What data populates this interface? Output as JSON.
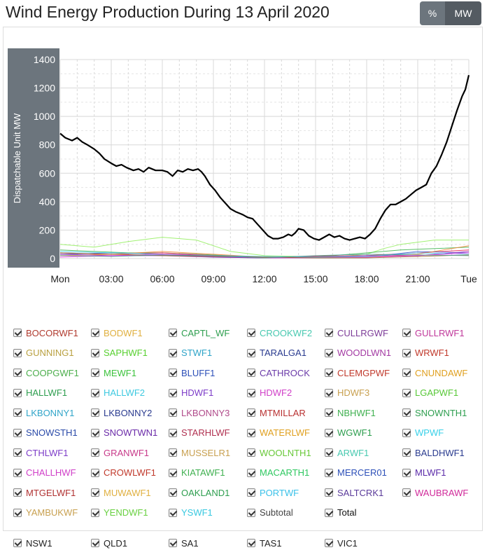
{
  "title": "Wind Energy Production During 13 April 2020",
  "toggle": {
    "percent_label": "%",
    "mw_label": "MW",
    "active": "MW"
  },
  "chart_data": {
    "type": "line",
    "ylabel": "Dispatchable Unit MW",
    "ylim": [
      0,
      1400
    ],
    "yticks": [
      0,
      200,
      400,
      600,
      800,
      1000,
      1200,
      1400
    ],
    "xlim": [
      0,
      24
    ],
    "xticks": [
      {
        "x": 0,
        "label": "Mon"
      },
      {
        "x": 3,
        "label": "03:00"
      },
      {
        "x": 6,
        "label": "06:00"
      },
      {
        "x": 9,
        "label": "09:00"
      },
      {
        "x": 12,
        "label": "12:00"
      },
      {
        "x": 15,
        "label": "15:00"
      },
      {
        "x": 18,
        "label": "18:00"
      },
      {
        "x": 21,
        "label": "21:00"
      },
      {
        "x": 24,
        "label": "Tue"
      }
    ],
    "grid": true,
    "total": {
      "name": "Total",
      "color": "#000000",
      "points": [
        [
          0,
          880
        ],
        [
          0.3,
          850
        ],
        [
          0.7,
          830
        ],
        [
          1.0,
          850
        ],
        [
          1.3,
          820
        ],
        [
          1.6,
          800
        ],
        [
          2.0,
          770
        ],
        [
          2.3,
          740
        ],
        [
          2.6,
          700
        ],
        [
          3.0,
          670
        ],
        [
          3.3,
          650
        ],
        [
          3.6,
          660
        ],
        [
          3.9,
          640
        ],
        [
          4.3,
          620
        ],
        [
          4.6,
          630
        ],
        [
          4.9,
          610
        ],
        [
          5.2,
          640
        ],
        [
          5.6,
          620
        ],
        [
          6.0,
          620
        ],
        [
          6.3,
          610
        ],
        [
          6.6,
          580
        ],
        [
          6.9,
          620
        ],
        [
          7.2,
          610
        ],
        [
          7.5,
          630
        ],
        [
          7.8,
          620
        ],
        [
          8.1,
          630
        ],
        [
          8.3,
          610
        ],
        [
          8.5,
          580
        ],
        [
          8.8,
          520
        ],
        [
          9.1,
          480
        ],
        [
          9.4,
          430
        ],
        [
          9.7,
          390
        ],
        [
          10.0,
          350
        ],
        [
          10.3,
          330
        ],
        [
          10.7,
          310
        ],
        [
          11.0,
          290
        ],
        [
          11.3,
          280
        ],
        [
          11.6,
          240
        ],
        [
          11.9,
          200
        ],
        [
          12.2,
          160
        ],
        [
          12.5,
          140
        ],
        [
          12.8,
          140
        ],
        [
          13.1,
          150
        ],
        [
          13.4,
          170
        ],
        [
          13.6,
          160
        ],
        [
          13.8,
          180
        ],
        [
          14.0,
          210
        ],
        [
          14.3,
          200
        ],
        [
          14.6,
          160
        ],
        [
          14.9,
          140
        ],
        [
          15.2,
          130
        ],
        [
          15.5,
          150
        ],
        [
          15.8,
          170
        ],
        [
          16.1,
          150
        ],
        [
          16.4,
          160
        ],
        [
          16.7,
          140
        ],
        [
          17.0,
          130
        ],
        [
          17.3,
          140
        ],
        [
          17.6,
          150
        ],
        [
          17.9,
          140
        ],
        [
          18.2,
          170
        ],
        [
          18.5,
          210
        ],
        [
          18.8,
          280
        ],
        [
          19.1,
          340
        ],
        [
          19.4,
          380
        ],
        [
          19.7,
          380
        ],
        [
          20.0,
          400
        ],
        [
          20.3,
          420
        ],
        [
          20.6,
          450
        ],
        [
          20.9,
          480
        ],
        [
          21.2,
          500
        ],
        [
          21.5,
          520
        ],
        [
          21.8,
          600
        ],
        [
          22.1,
          650
        ],
        [
          22.4,
          730
        ],
        [
          22.7,
          820
        ],
        [
          23.0,
          930
        ],
        [
          23.3,
          1040
        ],
        [
          23.6,
          1140
        ],
        [
          23.8,
          1190
        ],
        [
          24.0,
          1290
        ]
      ]
    },
    "minor_series": [
      {
        "color": "#90ee5a",
        "points": [
          [
            0,
            100
          ],
          [
            2,
            80
          ],
          [
            4,
            120
          ],
          [
            6,
            150
          ],
          [
            8,
            130
          ],
          [
            9,
            90
          ],
          [
            10,
            50
          ],
          [
            12,
            20
          ],
          [
            14,
            15
          ],
          [
            16,
            10
          ],
          [
            18,
            30
          ],
          [
            19,
            70
          ],
          [
            20,
            100
          ],
          [
            22,
            130
          ],
          [
            24,
            130
          ]
        ]
      },
      {
        "color": "#3cb44b",
        "points": [
          [
            0,
            60
          ],
          [
            2,
            50
          ],
          [
            4,
            40
          ],
          [
            6,
            40
          ],
          [
            8,
            30
          ],
          [
            10,
            20
          ],
          [
            12,
            10
          ],
          [
            14,
            10
          ],
          [
            16,
            20
          ],
          [
            18,
            40
          ],
          [
            20,
            60
          ],
          [
            22,
            70
          ],
          [
            24,
            80
          ]
        ]
      },
      {
        "color": "#e6194b",
        "points": [
          [
            0,
            40
          ],
          [
            3,
            30
          ],
          [
            6,
            40
          ],
          [
            9,
            20
          ],
          [
            12,
            10
          ],
          [
            15,
            15
          ],
          [
            18,
            20
          ],
          [
            21,
            40
          ],
          [
            24,
            60
          ]
        ]
      },
      {
        "color": "#4363d8",
        "points": [
          [
            0,
            30
          ],
          [
            3,
            40
          ],
          [
            6,
            30
          ],
          [
            9,
            10
          ],
          [
            12,
            5
          ],
          [
            15,
            5
          ],
          [
            18,
            10
          ],
          [
            21,
            50
          ],
          [
            24,
            40
          ]
        ]
      },
      {
        "color": "#f58231",
        "points": [
          [
            0,
            20
          ],
          [
            3,
            30
          ],
          [
            6,
            50
          ],
          [
            9,
            30
          ],
          [
            12,
            10
          ],
          [
            15,
            5
          ],
          [
            18,
            10
          ],
          [
            21,
            30
          ],
          [
            24,
            90
          ]
        ]
      },
      {
        "color": "#911eb4",
        "points": [
          [
            0,
            30
          ],
          [
            3,
            20
          ],
          [
            6,
            20
          ],
          [
            9,
            10
          ],
          [
            12,
            5
          ],
          [
            15,
            10
          ],
          [
            18,
            20
          ],
          [
            21,
            20
          ],
          [
            24,
            50
          ]
        ]
      },
      {
        "color": "#42d4f4",
        "points": [
          [
            0,
            50
          ],
          [
            3,
            40
          ],
          [
            6,
            30
          ],
          [
            9,
            20
          ],
          [
            12,
            15
          ],
          [
            15,
            10
          ],
          [
            18,
            15
          ],
          [
            21,
            40
          ],
          [
            24,
            30
          ]
        ]
      },
      {
        "color": "#f032e6",
        "points": [
          [
            0,
            10
          ],
          [
            3,
            20
          ],
          [
            6,
            30
          ],
          [
            9,
            20
          ],
          [
            12,
            5
          ],
          [
            15,
            5
          ],
          [
            18,
            10
          ],
          [
            21,
            20
          ],
          [
            24,
            40
          ]
        ]
      },
      {
        "color": "#9a6324",
        "points": [
          [
            0,
            40
          ],
          [
            3,
            30
          ],
          [
            6,
            20
          ],
          [
            9,
            15
          ],
          [
            12,
            10
          ],
          [
            15,
            5
          ],
          [
            18,
            5
          ],
          [
            21,
            15
          ],
          [
            24,
            25
          ]
        ]
      },
      {
        "color": "#469990",
        "points": [
          [
            0,
            20
          ],
          [
            3,
            15
          ],
          [
            6,
            25
          ],
          [
            9,
            20
          ],
          [
            12,
            5
          ],
          [
            15,
            20
          ],
          [
            18,
            30
          ],
          [
            21,
            25
          ],
          [
            24,
            20
          ]
        ]
      }
    ]
  },
  "legend": {
    "rows": [
      [
        {
          "label": "BOCORWF1",
          "color": "#b03a2e"
        },
        {
          "label": "BODWF1",
          "color": "#e0b040"
        },
        {
          "label": "CAPTL_WF",
          "color": "#2e9e4f"
        },
        {
          "label": "CROOKWF2",
          "color": "#48c9b0"
        },
        {
          "label": "CULLRGWF",
          "color": "#7d3c98"
        },
        {
          "label": "GULLRWF1",
          "color": "#c0399b"
        }
      ],
      [
        {
          "label": "GUNNING1",
          "color": "#b9a040"
        },
        {
          "label": "SAPHWF1",
          "color": "#58d030"
        },
        {
          "label": "STWF1",
          "color": "#2fa4c8"
        },
        {
          "label": "TARALGA1",
          "color": "#2a3b8f"
        },
        {
          "label": "WOODLWN1",
          "color": "#a33aa3"
        },
        {
          "label": "WRWF1",
          "color": "#c0392b"
        }
      ],
      [
        {
          "label": "COOPGWF1",
          "color": "#4cae4c"
        },
        {
          "label": "MEWF1",
          "color": "#3cc23c"
        },
        {
          "label": "BLUFF1",
          "color": "#2c4fb8"
        },
        {
          "label": "CATHROCK",
          "color": "#6a3aa8"
        },
        {
          "label": "CLEMGPWF",
          "color": "#c0392b"
        },
        {
          "label": "CNUNDAWF",
          "color": "#e0a020"
        }
      ],
      [
        {
          "label": "HALLWF1",
          "color": "#2e9e4f"
        },
        {
          "label": "HALLWF2",
          "color": "#3ec9e0"
        },
        {
          "label": "HDWF1",
          "color": "#7d3cc8"
        },
        {
          "label": "HDWF2",
          "color": "#d040c8"
        },
        {
          "label": "HDWF3",
          "color": "#c8a050"
        },
        {
          "label": "LGAPWF1",
          "color": "#58c838"
        }
      ],
      [
        {
          "label": "LKBONNY1",
          "color": "#2fa4c8"
        },
        {
          "label": "LKBONNY2",
          "color": "#2a3b8f"
        },
        {
          "label": "LKBONNY3",
          "color": "#b04a8a"
        },
        {
          "label": "MTMILLAR",
          "color": "#b83030"
        },
        {
          "label": "NBHWF1",
          "color": "#40b050"
        },
        {
          "label": "SNOWNTH1",
          "color": "#2e9e4f"
        }
      ],
      [
        {
          "label": "SNOWSTH1",
          "color": "#2a4aa8"
        },
        {
          "label": "SNOWTWN1",
          "color": "#6a2aa8"
        },
        {
          "label": "STARHLWF",
          "color": "#b03050"
        },
        {
          "label": "WATERLWF",
          "color": "#e0a020"
        },
        {
          "label": "WGWF1",
          "color": "#2e9e4f"
        },
        {
          "label": "WPWF",
          "color": "#38d0e8"
        }
      ],
      [
        {
          "label": "CTHLWF1",
          "color": "#7d3cc8"
        },
        {
          "label": "GRANWF1",
          "color": "#c83a8a"
        },
        {
          "label": "MUSSELR1",
          "color": "#c8a050"
        },
        {
          "label": "WOOLNTH1",
          "color": "#68c838"
        },
        {
          "label": "ARWF1",
          "color": "#48c9b0"
        },
        {
          "label": "BALDHWF1",
          "color": "#2a3b8f"
        }
      ],
      [
        {
          "label": "CHALLHWF",
          "color": "#d040c8"
        },
        {
          "label": "CROWLWF1",
          "color": "#c0392b"
        },
        {
          "label": "KIATAWF1",
          "color": "#40b050"
        },
        {
          "label": "MACARTH1",
          "color": "#2ec860"
        },
        {
          "label": "MERCER01",
          "color": "#2c4fb8"
        },
        {
          "label": "MLWF1",
          "color": "#5a2aa8"
        }
      ],
      [
        {
          "label": "MTGELWF1",
          "color": "#b03030"
        },
        {
          "label": "MUWAWF1",
          "color": "#e0b040"
        },
        {
          "label": "OAKLAND1",
          "color": "#2e9e4f"
        },
        {
          "label": "PORTWF",
          "color": "#38c0e8"
        },
        {
          "label": "SALTCRK1",
          "color": "#5a3a9a"
        },
        {
          "label": "WAUBRAWF",
          "color": "#d02a9a"
        }
      ],
      [
        {
          "label": "YAMBUKWF",
          "color": "#c8a050"
        },
        {
          "label": "YENDWF1",
          "color": "#68d040"
        },
        {
          "label": "YSWF1",
          "color": "#38c8e0"
        },
        {
          "label": "Subtotal",
          "color": "#444444"
        },
        {
          "label": "Total",
          "color": "#111111"
        }
      ]
    ],
    "regions": [
      {
        "label": "NSW1",
        "color": "#222222"
      },
      {
        "label": "QLD1",
        "color": "#222222"
      },
      {
        "label": "SA1",
        "color": "#222222"
      },
      {
        "label": "TAS1",
        "color": "#222222"
      },
      {
        "label": "VIC1",
        "color": "#222222"
      }
    ]
  }
}
